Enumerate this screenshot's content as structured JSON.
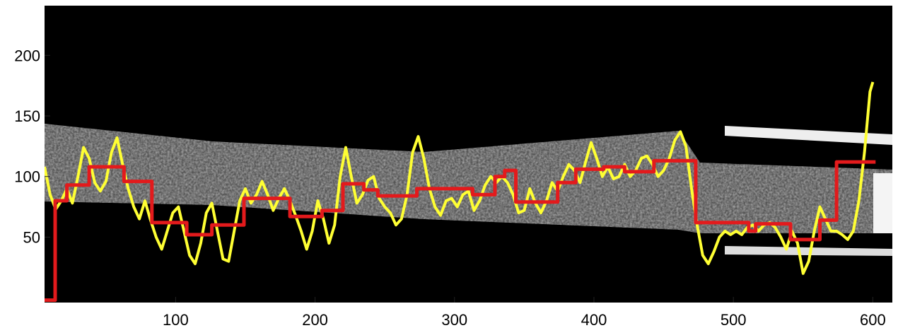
{
  "chart_data": {
    "type": "line",
    "xlim": [
      6,
      614
    ],
    "ylim": [
      -4,
      241
    ],
    "xticks": [
      100,
      200,
      300,
      400,
      500,
      600
    ],
    "yticks": [
      50,
      100,
      150,
      200
    ],
    "series": [
      {
        "color": "#ffff33",
        "x": [
          6,
          10,
          14,
          18,
          22,
          26,
          30,
          34,
          38,
          42,
          46,
          50,
          54,
          58,
          62,
          66,
          70,
          74,
          78,
          82,
          86,
          90,
          94,
          98,
          102,
          106,
          110,
          114,
          118,
          122,
          126,
          130,
          134,
          138,
          142,
          146,
          150,
          154,
          158,
          162,
          166,
          170,
          174,
          178,
          182,
          186,
          190,
          194,
          198,
          202,
          206,
          210,
          214,
          218,
          222,
          226,
          230,
          234,
          238,
          242,
          246,
          250,
          254,
          258,
          262,
          266,
          270,
          274,
          278,
          282,
          286,
          290,
          294,
          298,
          302,
          306,
          310,
          314,
          318,
          322,
          326,
          330,
          334,
          338,
          342,
          346,
          350,
          354,
          358,
          362,
          366,
          370,
          374,
          378,
          382,
          386,
          390,
          394,
          398,
          402,
          406,
          410,
          414,
          418,
          422,
          426,
          430,
          434,
          438,
          442,
          446,
          450,
          454,
          458,
          462,
          466,
          470,
          474,
          478,
          482,
          486,
          490,
          494,
          498,
          502,
          506,
          510,
          514,
          518,
          522,
          526,
          530,
          534,
          538,
          542,
          546,
          550,
          554,
          558,
          562,
          566,
          570,
          574,
          578,
          582,
          586,
          590,
          594,
          598,
          600
        ],
        "values": [
          108,
          85,
          73,
          80,
          90,
          78,
          100,
          124,
          115,
          95,
          88,
          96,
          120,
          132,
          110,
          90,
          75,
          65,
          80,
          64,
          50,
          40,
          55,
          70,
          75,
          55,
          35,
          28,
          45,
          70,
          78,
          55,
          32,
          30,
          55,
          80,
          90,
          78,
          85,
          96,
          85,
          72,
          82,
          90,
          80,
          68,
          55,
          40,
          55,
          80,
          65,
          45,
          60,
          100,
          124,
          100,
          78,
          85,
          97,
          100,
          82,
          75,
          70,
          60,
          65,
          85,
          120,
          133,
          115,
          90,
          75,
          68,
          80,
          82,
          75,
          85,
          88,
          72,
          80,
          93,
          100,
          95,
          100,
          95,
          85,
          70,
          72,
          90,
          78,
          70,
          80,
          95,
          88,
          100,
          110,
          105,
          95,
          112,
          128,
          115,
          100,
          108,
          98,
          100,
          110,
          100,
          105,
          115,
          117,
          110,
          100,
          105,
          115,
          130,
          137,
          125,
          90,
          60,
          35,
          28,
          38,
          50,
          55,
          52,
          55,
          52,
          58,
          60,
          55,
          60,
          62,
          58,
          50,
          40,
          55,
          45,
          20,
          30,
          55,
          75,
          65,
          55,
          55,
          52,
          48,
          55,
          80,
          120,
          170,
          178
        ]
      },
      {
        "color": "#e31a1c",
        "x": [
          6,
          13.6,
          13.6,
          22,
          22,
          38,
          38,
          63,
          63,
          83,
          83,
          108,
          108,
          126,
          126,
          149,
          149,
          182,
          182,
          205,
          205,
          220,
          220,
          235,
          235,
          245,
          245,
          273,
          273,
          313,
          313,
          329,
          329,
          336,
          336,
          344,
          344,
          374,
          374,
          387,
          387,
          407,
          407,
          422,
          422,
          443,
          443,
          473,
          473,
          511,
          511,
          516,
          516,
          541,
          541,
          562,
          562,
          574,
          574,
          602
        ],
        "values": [
          -2,
          -2,
          80,
          80,
          93,
          93,
          108,
          108,
          96,
          96,
          62,
          62,
          52,
          52,
          60,
          60,
          82,
          82,
          67,
          67,
          72,
          72,
          94,
          94,
          89,
          89,
          84,
          84,
          90,
          90,
          85,
          85,
          100,
          100,
          105,
          105,
          79,
          79,
          95,
          95,
          106,
          106,
          108,
          108,
          104,
          104,
          113,
          113,
          62,
          62,
          55,
          55,
          61,
          61,
          48,
          48,
          64,
          64,
          112,
          112
        ]
      }
    ]
  }
}
